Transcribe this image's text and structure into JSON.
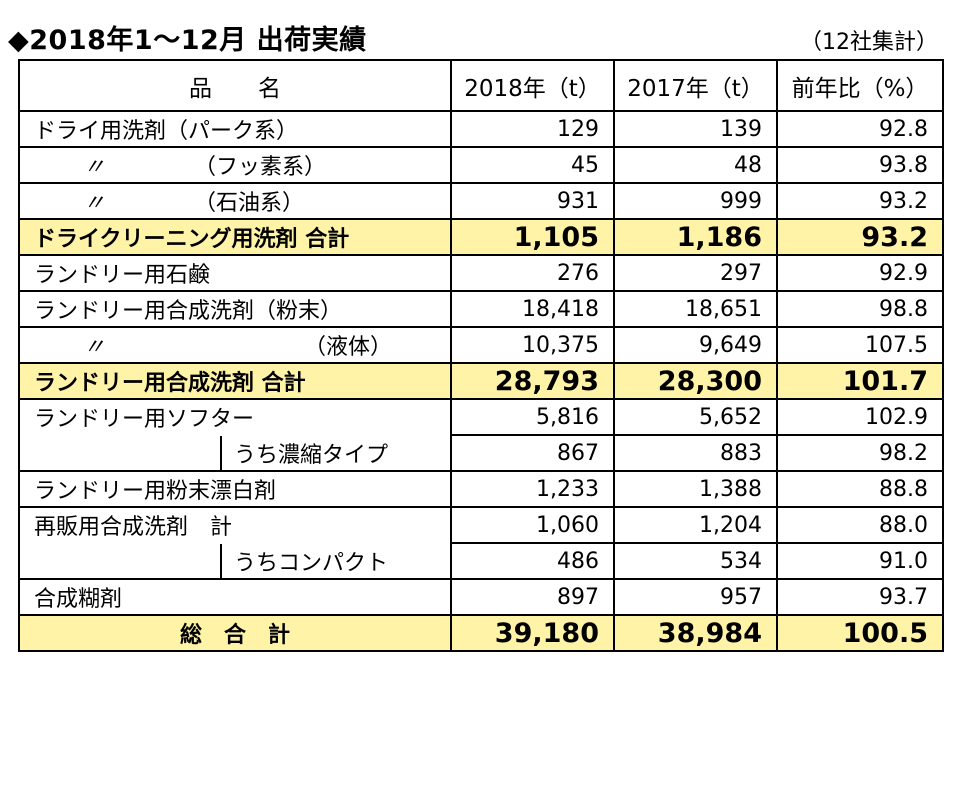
{
  "title": "◆2018年1～12月 出荷実績",
  "note": "（12社集計）",
  "headers": {
    "name": "品　　名",
    "y2018": "2018年（t）",
    "y2017": "2017年（t）",
    "ratio": "前年比（%）"
  },
  "rows": [
    {
      "name": "ドライ用洗剤（パーク系）",
      "v2018": "129",
      "v2017": "139",
      "ratio": "92.8"
    },
    {
      "ditto": "〃",
      "name": "（フッ素系）",
      "v2018": "45",
      "v2017": "48",
      "ratio": "93.8"
    },
    {
      "ditto": "〃",
      "name": "（石油系）",
      "v2018": "931",
      "v2017": "999",
      "ratio": "93.2"
    },
    {
      "name": "ドライクリーニング用洗剤 合計",
      "v2018": "1,105",
      "v2017": "1,186",
      "ratio": "93.2"
    },
    {
      "name": "ランドリー用石鹸",
      "v2018": "276",
      "v2017": "297",
      "ratio": "92.9"
    },
    {
      "name": "ランドリー用合成洗剤（粉末）",
      "v2018": "18,418",
      "v2017": "18,651",
      "ratio": "98.8"
    },
    {
      "ditto": "〃",
      "name": "（液体）",
      "v2018": "10,375",
      "v2017": "9,649",
      "ratio": "107.5"
    },
    {
      "name": "ランドリー用合成洗剤 合計",
      "v2018": "28,793",
      "v2017": "28,300",
      "ratio": "101.7"
    },
    {
      "name": "ランドリー用ソフター",
      "v2018": "5,816",
      "v2017": "5,652",
      "ratio": "102.9"
    },
    {
      "name": "うち濃縮タイプ",
      "v2018": "867",
      "v2017": "883",
      "ratio": "98.2"
    },
    {
      "name": "ランドリー用粉末漂白剤",
      "v2018": "1,233",
      "v2017": "1,388",
      "ratio": "88.8"
    },
    {
      "name": "再販用合成洗剤　計",
      "v2018": "1,060",
      "v2017": "1,204",
      "ratio": "88.0"
    },
    {
      "name": "うちコンパクト",
      "v2018": "486",
      "v2017": "534",
      "ratio": "91.0"
    },
    {
      "name": "合成糊剤",
      "v2018": "897",
      "v2017": "957",
      "ratio": "93.7"
    },
    {
      "name": "総　合　計",
      "v2018": "39,180",
      "v2017": "38,984",
      "ratio": "100.5"
    }
  ],
  "colors": {
    "highlight": "#fff3a8",
    "border": "#000000"
  }
}
